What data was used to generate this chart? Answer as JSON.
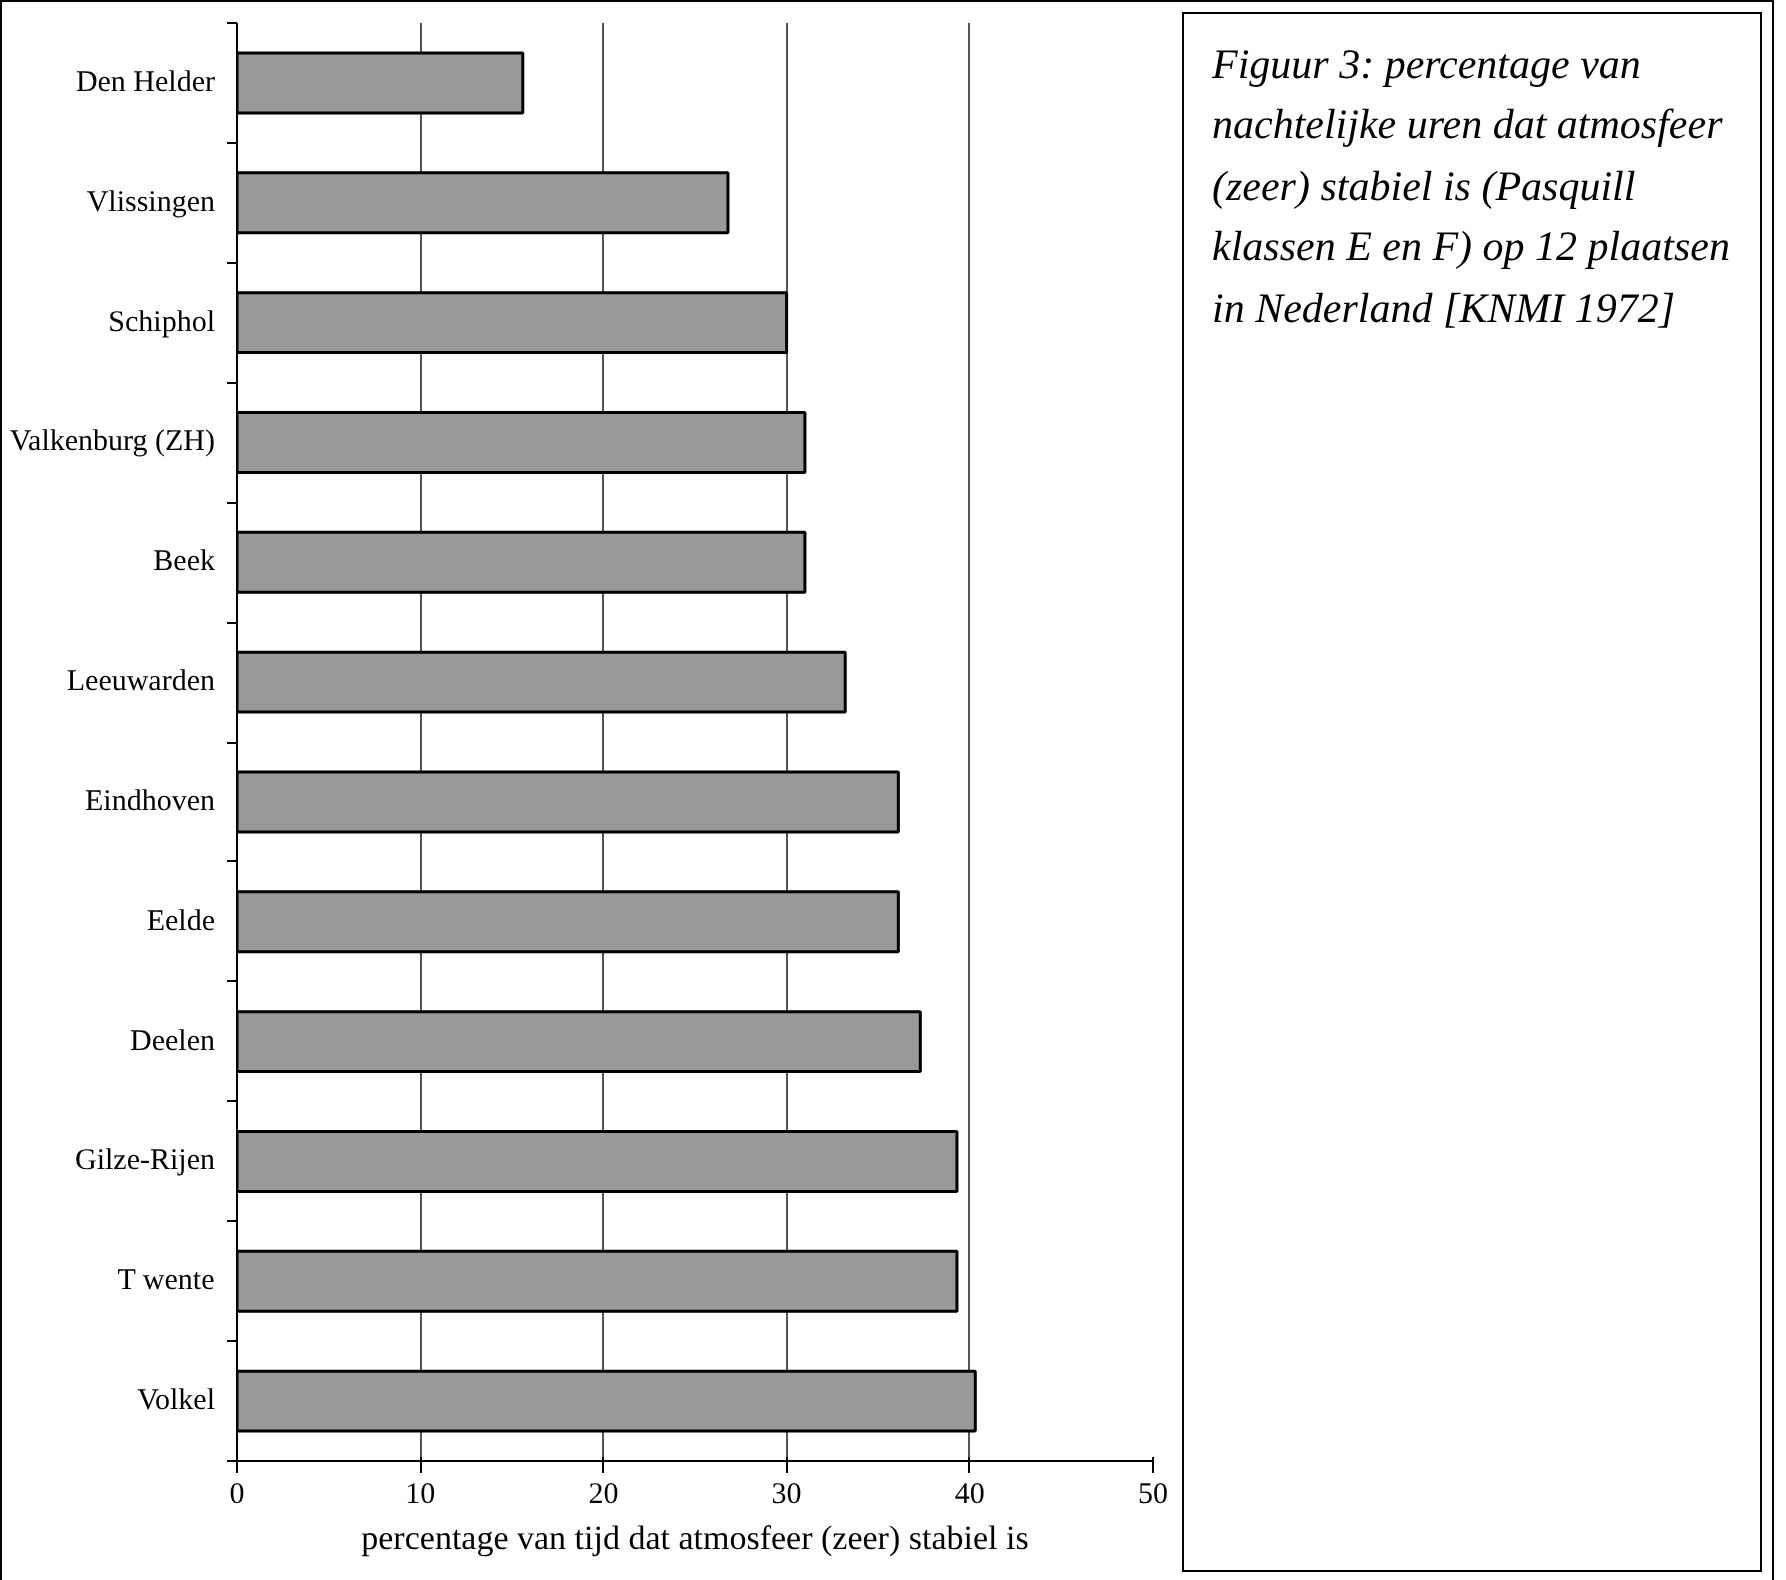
{
  "chart_data": {
    "type": "bar",
    "orientation": "horizontal",
    "categories": [
      "Den Helder",
      "Vlissingen",
      "Schiphol",
      "Valkenburg (ZH)",
      "Beek",
      "Leeuwarden",
      "Eindhoven",
      "Eelde",
      "Deelen",
      "Gilze-Rijen",
      "T wente",
      "Volkel"
    ],
    "values": [
      15.6,
      26.8,
      30.0,
      31.0,
      31.0,
      33.2,
      36.1,
      36.1,
      37.3,
      39.3,
      39.3,
      40.3
    ],
    "color": "#999999",
    "xlim": [
      0,
      50
    ],
    "xticks": [
      0,
      10,
      20,
      30,
      40,
      50
    ],
    "xlabel": "percentage van tijd dat atmosfeer (zeer) stabiel is",
    "grid": "x",
    "annotations": [
      "Figuur 3: percentage van nachtelijke uren dat atmosfeer (zeer) stabiel is (Pasquill klassen E en F) op 12 plaatsen in Nederland [KNMI 1972]"
    ]
  }
}
